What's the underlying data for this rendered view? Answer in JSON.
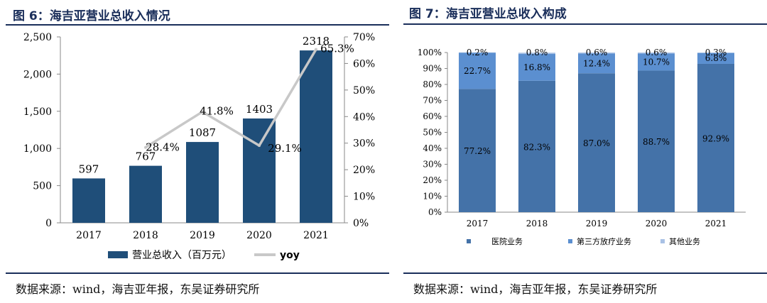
{
  "left": {
    "title": "图 6：海吉亚营业总收入情况",
    "source": "数据来源：wind，海吉亚年报，东吴证券研究所",
    "chart_data": {
      "type": "bar",
      "categories": [
        "2017",
        "2018",
        "2019",
        "2020",
        "2021"
      ],
      "series": [
        {
          "name": "营业总收入（百万元）",
          "type": "bar",
          "axis": "left",
          "values": [
            597,
            767,
            1087,
            1403,
            2318
          ],
          "color": "#1f4e79"
        },
        {
          "name": "yoy",
          "type": "line",
          "axis": "right",
          "values": [
            null,
            28.4,
            41.8,
            29.1,
            65.3
          ],
          "color": "#c8c8c8"
        }
      ],
      "bar_labels": [
        "597",
        "767",
        "1087",
        "1403",
        "2318"
      ],
      "line_labels": [
        "",
        "28.4%",
        "41.8%",
        "29.1%",
        "65.3%"
      ],
      "ylim": [
        0,
        2500
      ],
      "yticks": [
        "0",
        "500",
        "1,000",
        "1,500",
        "2,000",
        "2,500"
      ],
      "y2lim": [
        0,
        70
      ],
      "y2ticks": [
        "0%",
        "10%",
        "20%",
        "30%",
        "40%",
        "50%",
        "60%",
        "70%"
      ],
      "legend": "bottom",
      "grid": false
    }
  },
  "right": {
    "title": "图 7：海吉亚营业总收入构成",
    "source": "数据来源：wind，海吉亚年报，东吴证券研究所",
    "chart_data": {
      "type": "bar",
      "stacked": true,
      "categories": [
        "2017",
        "2018",
        "2019",
        "2020",
        "2021"
      ],
      "series": [
        {
          "name": "医院业务",
          "values": [
            77.2,
            82.3,
            87.0,
            88.7,
            92.9
          ],
          "labels": [
            "77.2%",
            "82.3%",
            "87.0%",
            "88.7%",
            "92.9%"
          ],
          "color": "#4472a8"
        },
        {
          "name": "第三方放疗业务",
          "values": [
            22.7,
            16.8,
            12.4,
            10.7,
            6.8
          ],
          "labels": [
            "22.7%",
            "16.8%",
            "12.4%",
            "10.7%",
            "6.8%"
          ],
          "color": "#5b8fd0"
        },
        {
          "name": "其他业务",
          "values": [
            0.2,
            0.8,
            0.6,
            0.6,
            0.3
          ],
          "labels": [
            "0.2%",
            "0.8%",
            "0.6%",
            "0.6%",
            "0.3%"
          ],
          "color": "#a9c1e5"
        }
      ],
      "ylim": [
        0,
        100
      ],
      "yticks": [
        "0%",
        "10%",
        "20%",
        "30%",
        "40%",
        "50%",
        "60%",
        "70%",
        "80%",
        "90%",
        "100%"
      ],
      "legend": "bottom",
      "grid": false
    }
  }
}
